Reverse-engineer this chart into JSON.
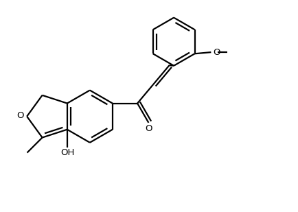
{
  "background_color": "#ffffff",
  "line_color": "#000000",
  "line_width": 1.6,
  "figsize": [
    4.35,
    3.09
  ],
  "dpi": 100,
  "xlim": [
    0,
    10
  ],
  "ylim": [
    0,
    7.1
  ]
}
